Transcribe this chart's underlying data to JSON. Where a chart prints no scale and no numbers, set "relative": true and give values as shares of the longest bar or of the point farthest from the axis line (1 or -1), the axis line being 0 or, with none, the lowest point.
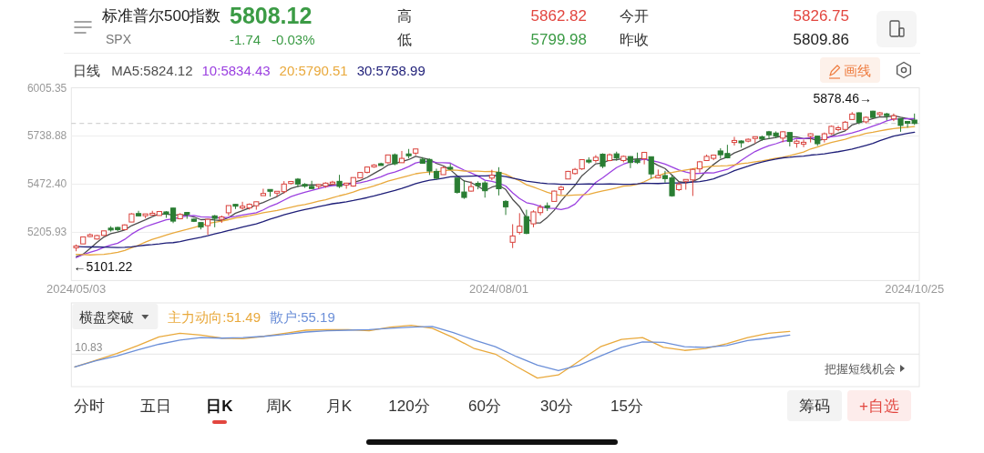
{
  "chart_data": [
    {
      "type": "other",
      "title": "标准普尔500指数",
      "subtitle": "SPX",
      "annotations": [
        "5808.12",
        "-1.74",
        "-0.03%",
        "高",
        "5862.82",
        "低",
        "5799.98",
        "今开",
        "5826.75",
        "昨收",
        "5809.86"
      ]
    },
    {
      "type": "candlestick",
      "title": "日线",
      "legend": "top left",
      "grid": "y",
      "categories": [
        "2024/05/03",
        null,
        null,
        null,
        null,
        null,
        null,
        null,
        null,
        null,
        null,
        null,
        null,
        null,
        null,
        null,
        null,
        null,
        null,
        null,
        null,
        null,
        null,
        null,
        null,
        null,
        null,
        null,
        null,
        null,
        null,
        null,
        null,
        null,
        null,
        null,
        null,
        null,
        null,
        null,
        null,
        null,
        null,
        null,
        null,
        null,
        null,
        null,
        null,
        null,
        null,
        null,
        null,
        null,
        null,
        null,
        null,
        null,
        null,
        null,
        null,
        "2024/08/01",
        null,
        null,
        null,
        null,
        null,
        null,
        null,
        null,
        null,
        null,
        null,
        null,
        null,
        null,
        null,
        null,
        null,
        null,
        null,
        null,
        null,
        null,
        null,
        null,
        null,
        null,
        null,
        null,
        null,
        null,
        null,
        null,
        null,
        null,
        null,
        null,
        null,
        null,
        null,
        null,
        null,
        null,
        null,
        null,
        null,
        null,
        null,
        null,
        null,
        null,
        null,
        null,
        null,
        null,
        null,
        null,
        null,
        null,
        null,
        "2024/10/25"
      ],
      "ohlc": [
        [
          5123,
          5139,
          5101.22,
          5128
        ],
        [
          5142,
          5181,
          5142,
          5181
        ],
        [
          5187,
          5200,
          5179,
          5188
        ],
        [
          5169,
          5192,
          5166,
          5188
        ],
        [
          5189,
          5215,
          5187,
          5214
        ],
        [
          5225,
          5240,
          5210,
          5223
        ],
        [
          5233,
          5237,
          5211,
          5221
        ],
        [
          5221,
          5250,
          5218,
          5247
        ],
        [
          5263,
          5312,
          5263,
          5308
        ],
        [
          5310,
          5325,
          5296,
          5297
        ],
        [
          5303,
          5305,
          5284,
          5303
        ],
        [
          5305,
          5325,
          5302,
          5308
        ],
        [
          5299,
          5324,
          5298,
          5321
        ],
        [
          5319,
          5323,
          5286,
          5307
        ],
        [
          5340,
          5342,
          5257,
          5268
        ],
        [
          5281,
          5312,
          5278,
          5305
        ],
        [
          5316,
          5316,
          5281,
          5306
        ],
        [
          5279,
          5282,
          5263,
          5267
        ],
        [
          5260,
          5260,
          5222,
          5235
        ],
        [
          5243,
          5280,
          5192,
          5278
        ],
        [
          5297,
          5302,
          5234,
          5283
        ],
        [
          5278,
          5299,
          5258,
          5291
        ],
        [
          5314,
          5354,
          5298,
          5354
        ],
        [
          5358,
          5362,
          5335,
          5353
        ],
        [
          5344,
          5375,
          5331,
          5347
        ],
        [
          5341,
          5366,
          5332,
          5361
        ],
        [
          5353,
          5376,
          5331,
          5375
        ],
        [
          5409,
          5447,
          5409,
          5421
        ],
        [
          5442,
          5442,
          5403,
          5434
        ],
        [
          5424,
          5432,
          5404,
          5432
        ],
        [
          5431,
          5489,
          5420,
          5473
        ],
        [
          5476,
          5490,
          5471,
          5487
        ],
        [
          5500,
          5506,
          5456,
          5473
        ],
        [
          5467,
          5478,
          5452,
          5465
        ],
        [
          5460,
          5491,
          5448,
          5448
        ],
        [
          5461,
          5473,
          5447,
          5469
        ],
        [
          5461,
          5483,
          5452,
          5478
        ],
        [
          5474,
          5491,
          5468,
          5483
        ],
        [
          5488,
          5524,
          5451,
          5460
        ],
        [
          5471,
          5480,
          5447,
          5475
        ],
        [
          5462,
          5510,
          5458,
          5509
        ],
        [
          5507,
          5539,
          5507,
          5537
        ],
        [
          5538,
          5570,
          5532,
          5567
        ],
        [
          5573,
          5583,
          5563,
          5573
        ],
        [
          5584,
          5591,
          5575,
          5577
        ],
        [
          5591,
          5635,
          5586,
          5634
        ],
        [
          5635,
          5642,
          5577,
          5585
        ],
        [
          5591,
          5656,
          5590,
          5615
        ],
        [
          5638,
          5667,
          5615,
          5631
        ],
        [
          5644,
          5667,
          5632,
          5667
        ],
        [
          5610,
          5622,
          5585,
          5588
        ],
        [
          5609,
          5614,
          5523,
          5545
        ],
        [
          5543,
          5558,
          5497,
          5505
        ],
        [
          5525,
          5570,
          5525,
          5564
        ],
        [
          5565,
          5585,
          5551,
          5556
        ],
        [
          5506,
          5508,
          5420,
          5427
        ],
        [
          5429,
          5492,
          5391,
          5399
        ],
        [
          5434,
          5488,
          5431,
          5459
        ],
        [
          5477,
          5488,
          5444,
          5464
        ],
        [
          5479,
          5489,
          5398,
          5436
        ],
        [
          5506,
          5552,
          5494,
          5522
        ],
        [
          5538,
          5566,
          5410,
          5447
        ],
        [
          5377,
          5384,
          5302,
          5347
        ],
        [
          5151,
          5251,
          5119,
          5186
        ],
        [
          5206,
          5312,
          5194,
          5240
        ],
        [
          5293,
          5331,
          5196,
          5200
        ],
        [
          5253,
          5328,
          5234,
          5319
        ],
        [
          5315,
          5359,
          5300,
          5344
        ],
        [
          5352,
          5371,
          5324,
          5344
        ],
        [
          5377,
          5437,
          5377,
          5434
        ],
        [
          5442,
          5463,
          5415,
          5455
        ],
        [
          5501,
          5546,
          5501,
          5543
        ],
        [
          5531,
          5562,
          5525,
          5554
        ],
        [
          5557,
          5608,
          5551,
          5608
        ],
        [
          5603,
          5621,
          5586,
          5597
        ],
        [
          5603,
          5633,
          5592,
          5621
        ],
        [
          5638,
          5643,
          5561,
          5571
        ],
        [
          5603,
          5642,
          5599,
          5635
        ],
        [
          5640,
          5652,
          5602,
          5617
        ],
        [
          5603,
          5631,
          5593,
          5626
        ],
        [
          5625,
          5627,
          5561,
          5592
        ],
        [
          5607,
          5647,
          5584,
          5592
        ],
        [
          5613,
          5651,
          5582,
          5648
        ],
        [
          5624,
          5624,
          5504,
          5529
        ],
        [
          5507,
          5553,
          5504,
          5520
        ],
        [
          5520,
          5546,
          5481,
          5503
        ],
        [
          5507,
          5522,
          5403,
          5408
        ],
        [
          5442,
          5484,
          5434,
          5471
        ],
        [
          5491,
          5498,
          5442,
          5496
        ],
        [
          5496,
          5560,
          5407,
          5554
        ],
        [
          5557,
          5601,
          5536,
          5596
        ],
        [
          5603,
          5636,
          5602,
          5626
        ],
        [
          5615,
          5636,
          5605,
          5633
        ],
        [
          5656,
          5671,
          5614,
          5635
        ],
        [
          5642,
          5690,
          5615,
          5618
        ],
        [
          5703,
          5734,
          5686,
          5714
        ],
        [
          5709,
          5715,
          5674,
          5703
        ],
        [
          5712,
          5725,
          5704,
          5719
        ],
        [
          5727,
          5735,
          5699,
          5733
        ],
        [
          5734,
          5741,
          5712,
          5722
        ],
        [
          5762,
          5767,
          5721,
          5745
        ],
        [
          5755,
          5764,
          5727,
          5738
        ],
        [
          5727,
          5765,
          5704,
          5762
        ],
        [
          5758,
          5758,
          5681,
          5709
        ],
        [
          5698,
          5719,
          5674,
          5710
        ],
        [
          5698,
          5719,
          5677,
          5700
        ],
        [
          5737,
          5754,
          5703,
          5751
        ],
        [
          5738,
          5739,
          5684,
          5696
        ],
        [
          5719,
          5758,
          5703,
          5751
        ],
        [
          5752,
          5797,
          5745,
          5792
        ],
        [
          5778,
          5795,
          5765,
          5780
        ],
        [
          5775,
          5822,
          5775,
          5815
        ],
        [
          5830,
          5871,
          5830,
          5860
        ],
        [
          5867,
          5870,
          5804,
          5815
        ],
        [
          5817,
          5847,
          5808,
          5842
        ],
        [
          5876,
          5878.46,
          5840,
          5841
        ],
        [
          5859,
          5872,
          5846,
          5865
        ],
        [
          5858,
          5867,
          5825,
          5854
        ],
        [
          5833,
          5863,
          5821,
          5851
        ],
        [
          5835,
          5835,
          5762,
          5797
        ],
        [
          5818,
          5818,
          5785,
          5810
        ],
        [
          5826.75,
          5862.82,
          5799.98,
          5808.12
        ]
      ],
      "series": [
        {
          "type": "line",
          "name": "MA5:5824.12",
          "color": "#4d4d4d",
          "values": [
            5072,
            5085,
            5116,
            5150,
            5180,
            5199,
            5207,
            5219,
            5243,
            5259,
            5275,
            5293,
            5308,
            5307,
            5302,
            5302,
            5301,
            5291,
            5276,
            5278,
            5274,
            5271,
            5288,
            5312,
            5326,
            5341,
            5358,
            5371,
            5388,
            5404,
            5427,
            5449,
            5460,
            5466,
            5469,
            5468,
            5467,
            5469,
            5468,
            5473,
            5481,
            5493,
            5510,
            5532,
            5553,
            5578,
            5587,
            5597,
            5608,
            5626,
            5617,
            5609,
            5587,
            5574,
            5552,
            5519,
            5490,
            5481,
            5461,
            5437,
            5456,
            5466,
            5443,
            5388,
            5348,
            5284,
            5258,
            5258,
            5289,
            5328,
            5380,
            5424,
            5466,
            5519,
            5552,
            5585,
            5590,
            5606,
            5608,
            5614,
            5608,
            5612,
            5615,
            5597,
            5576,
            5559,
            5522,
            5486,
            5480,
            5487,
            5505,
            5548,
            5581,
            5609,
            5622,
            5645,
            5660,
            5678,
            5697,
            5718,
            5724,
            5731,
            5740,
            5735,
            5733,
            5724,
            5726,
            5713,
            5722,
            5738,
            5754,
            5767,
            5800,
            5812,
            5823,
            5835,
            5845,
            5844,
            5851,
            5842,
            5835,
            5824.12
          ]
        },
        {
          "type": "line",
          "name": "10:5834.43",
          "color": "#9b40e0",
          "values": [
            5066,
            5083,
            5095,
            5107,
            5123,
            5136,
            5146,
            5167,
            5196,
            5219,
            5237,
            5250,
            5263,
            5275,
            5280,
            5289,
            5297,
            5299,
            5292,
            5290,
            5288,
            5286,
            5289,
            5294,
            5302,
            5308,
            5314,
            5330,
            5350,
            5365,
            5384,
            5404,
            5416,
            5427,
            5437,
            5448,
            5458,
            5464,
            5467,
            5471,
            5475,
            5480,
            5489,
            5500,
            5513,
            5529,
            5540,
            5553,
            5570,
            5590,
            5597,
            5598,
            5592,
            5591,
            5589,
            5568,
            5550,
            5534,
            5517,
            5494,
            5488,
            5478,
            5462,
            5424,
            5393,
            5370,
            5362,
            5350,
            5339,
            5338,
            5332,
            5341,
            5362,
            5404,
            5440,
            5482,
            5507,
            5536,
            5564,
            5583,
            5596,
            5601,
            5611,
            5603,
            5595,
            5583,
            5567,
            5551,
            5539,
            5531,
            5532,
            5535,
            5534,
            5544,
            5554,
            5575,
            5604,
            5629,
            5653,
            5670,
            5685,
            5696,
            5709,
            5716,
            5725,
            5724,
            5729,
            5727,
            5728,
            5735,
            5739,
            5747,
            5756,
            5767,
            5780,
            5794,
            5806,
            5822,
            5832,
            5832,
            5835,
            5834.43
          ]
        },
        {
          "type": "line",
          "name": "20:5790.51",
          "color": "#e9a93c",
          "values": [
            5084,
            5083,
            5081,
            5083,
            5084,
            5089,
            5096,
            5106,
            5121,
            5135,
            5152,
            5167,
            5179,
            5191,
            5202,
            5212,
            5222,
            5233,
            5244,
            5255,
            5262,
            5268,
            5276,
            5285,
            5291,
            5298,
            5306,
            5314,
            5321,
            5327,
            5336,
            5345,
            5353,
            5360,
            5369,
            5378,
            5386,
            5397,
            5408,
            5418,
            5429,
            5442,
            5452,
            5463,
            5475,
            5489,
            5499,
            5509,
            5519,
            5530,
            5536,
            5539,
            5541,
            5546,
            5551,
            5549,
            5545,
            5544,
            5544,
            5542,
            5543,
            5538,
            5527,
            5508,
            5491,
            5469,
            5456,
            5442,
            5428,
            5416,
            5410,
            5410,
            5412,
            5414,
            5416,
            5426,
            5435,
            5443,
            5451,
            5461,
            5464,
            5471,
            5486,
            5504,
            5518,
            5533,
            5537,
            5544,
            5551,
            5557,
            5564,
            5568,
            5572,
            5573,
            5575,
            5579,
            5586,
            5590,
            5596,
            5601,
            5608,
            5616,
            5621,
            5630,
            5640,
            5650,
            5667,
            5678,
            5691,
            5703,
            5712,
            5721,
            5733,
            5742,
            5753,
            5759,
            5767,
            5774,
            5780,
            5784,
            5787,
            5790.51
          ]
        },
        {
          "type": "line",
          "name": "30:5758.99",
          "color": "#1e1e78",
          "values": [
            5128,
            5126,
            5125,
            5125,
            5124,
            5123,
            5122,
            5123,
            5126,
            5131,
            5135,
            5138,
            5142,
            5147,
            5149,
            5155,
            5163,
            5171,
            5178,
            5187,
            5197,
            5206,
            5216,
            5225,
            5235,
            5244,
            5253,
            5265,
            5279,
            5291,
            5303,
            5313,
            5323,
            5332,
            5340,
            5348,
            5356,
            5364,
            5369,
            5375,
            5382,
            5390,
            5398,
            5407,
            5417,
            5428,
            5437,
            5449,
            5462,
            5475,
            5485,
            5494,
            5499,
            5506,
            5513,
            5515,
            5516,
            5517,
            5518,
            5518,
            5520,
            5519,
            5514,
            5505,
            5498,
            5489,
            5484,
            5479,
            5475,
            5474,
            5472,
            5472,
            5472,
            5473,
            5474,
            5473,
            5473,
            5474,
            5473,
            5472,
            5472,
            5474,
            5478,
            5477,
            5476,
            5478,
            5479,
            5479,
            5480,
            5484,
            5487,
            5493,
            5502,
            5517,
            5530,
            5547,
            5560,
            5572,
            5585,
            5595,
            5604,
            5611,
            5618,
            5621,
            5625,
            5627,
            5633,
            5636,
            5640,
            5646,
            5652,
            5659,
            5666,
            5676,
            5687,
            5698,
            5713,
            5726,
            5738,
            5746,
            5753,
            5758.99
          ]
        }
      ],
      "ylim": [
        4939.45,
        6005.35
      ],
      "yticks": [
        6005.35,
        5738.88,
        {
          "value": 5472.4,
          "label": "5472.40"
        },
        5205.93,
        {
          "value": 4939.45,
          "label": null
        }
      ],
      "ref_lines": [
        {
          "axis": "y",
          "value": 5808.12,
          "color": "#c8c8c8",
          "line_style": "dashed"
        }
      ],
      "annotations": [
        "5878.46→",
        {
          "text": "←5101.22",
          "x": "2024/05/03",
          "y": 5101.22
        },
        "画线"
      ]
    },
    {
      "type": "line",
      "title": "横盘突破",
      "legend": "top left",
      "relative": true,
      "categories": [
        null,
        null,
        null,
        null,
        null,
        null,
        null,
        null,
        null,
        null,
        null,
        null,
        null,
        null,
        null,
        null,
        null,
        null,
        null,
        null,
        null,
        null,
        null,
        null,
        null,
        null,
        null,
        null,
        null,
        null,
        null,
        null,
        null,
        null,
        null,
        null,
        null,
        null,
        null,
        null,
        null
      ],
      "series": [
        {
          "name": "主力动向:51.49",
          "color": "#e9a93c",
          "values": [
            0.32,
            0.43,
            0.54,
            0.67,
            0.81,
            0.87,
            0.84,
            0.79,
            0.78,
            0.82,
            0.87,
            0.92,
            0.93,
            0.93,
            0.91,
            0.97,
            1,
            0.95,
            0.8,
            0.62,
            0.53,
            0.33,
            0.14,
            0.19,
            0.42,
            0.65,
            0.77,
            0.8,
            0.64,
            0.59,
            0.62,
            0.7,
            0.8,
            0.87,
            0.9,
            null,
            null,
            null,
            null,
            null,
            null
          ]
        },
        {
          "name": "散户:55.19",
          "color": "#6b8fd8",
          "values": [
            0.32,
            0.42,
            0.5,
            0.6,
            0.69,
            0.76,
            0.8,
            0.79,
            0.8,
            0.82,
            0.85,
            0.89,
            0.91,
            0.92,
            0.93,
            0.95,
            0.97,
            0.98,
            0.88,
            0.76,
            0.65,
            0.49,
            0.35,
            0.26,
            0.35,
            0.5,
            0.64,
            0.73,
            0.72,
            0.65,
            0.64,
            0.67,
            0.75,
            0.79,
            0.84,
            null,
            null,
            null,
            null,
            null,
            null
          ]
        }
      ],
      "ref_lines": [
        {
          "axis": "y",
          "value": 0.53,
          "color": "#e4e4e4"
        }
      ],
      "annotations": [
        "10.83",
        "把握短线机会"
      ]
    },
    {
      "type": "other",
      "annotations": [
        "分时",
        "五日",
        "日K",
        "周K",
        "月K",
        "120分",
        "60分",
        "30分",
        "15分",
        "筹码",
        "+自选"
      ]
    }
  ]
}
